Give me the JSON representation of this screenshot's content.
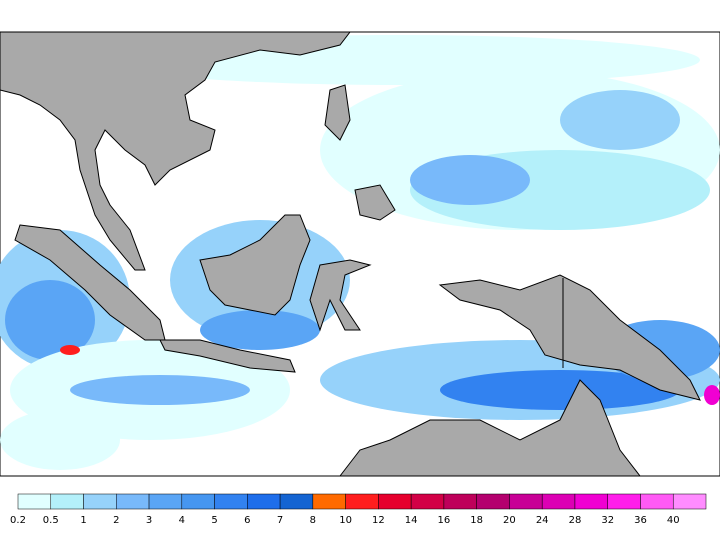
{
  "colorbar": {
    "ticks": [
      0.2,
      0.5,
      1,
      2,
      3,
      4,
      5,
      6,
      7,
      8,
      10,
      12,
      14,
      16,
      18,
      20,
      24,
      28,
      32,
      36,
      40
    ],
    "colors": [
      "#e1ffff",
      "#b4f0fa",
      "#96d2fa",
      "#78b9fa",
      "#5aa5f5",
      "#4696f0",
      "#3282f0",
      "#1e6eeb",
      "#1464d2",
      "#ff6a00",
      "#ff1e1e",
      "#e6002d",
      "#d20046",
      "#be005a",
      "#b4006e",
      "#c80096",
      "#dc00b4",
      "#f000d2",
      "#ff1eeb",
      "#ff5af5",
      "#ff8cff"
    ]
  }
}
